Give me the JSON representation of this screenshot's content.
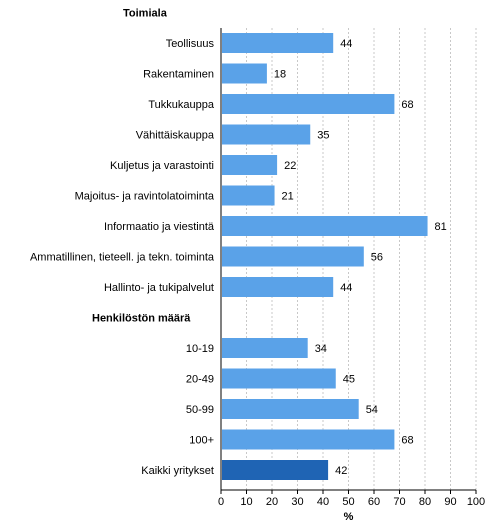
{
  "chart_data": {
    "type": "bar",
    "orientation": "horizontal",
    "xlabel": "%",
    "xlim": [
      0,
      100
    ],
    "x_ticks": [
      "0",
      "10",
      "20",
      "30",
      "40",
      "50",
      "60",
      "70",
      "80",
      "90",
      "100"
    ],
    "grid": "vertical-dashed",
    "colors": {
      "bar": "#5aa2e8",
      "highlight": "#1f64b4",
      "grid": "#c8c8c8"
    },
    "groups": [
      {
        "title": "Toimiala",
        "categories": [
          "Teollisuus",
          "Rakentaminen",
          "Tukkukauppa",
          "Vähittäiskauppa",
          "Kuljetus ja varastointi",
          "Majoitus- ja ravintolatoiminta",
          "Informaatio ja viestintä",
          "Ammatillinen, tieteell. ja tekn. toiminta",
          "Hallinto- ja tukipalvelut"
        ],
        "values": [
          44,
          18,
          68,
          35,
          22,
          21,
          81,
          56,
          44
        ]
      },
      {
        "title": "Henkilöstön määrä",
        "categories": [
          "10-19",
          "20-49",
          "50-99",
          "100+",
          "Kaikki yritykset"
        ],
        "values": [
          34,
          45,
          54,
          68,
          42
        ],
        "highlight": [
          false,
          false,
          false,
          false,
          true
        ]
      }
    ]
  }
}
